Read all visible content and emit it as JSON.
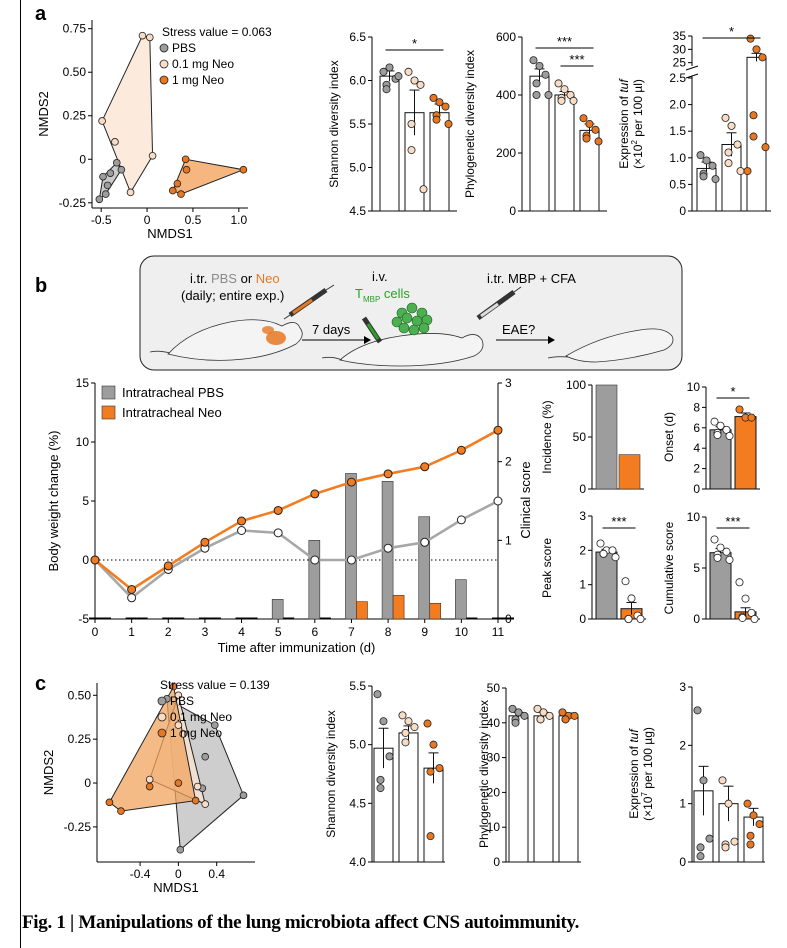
{
  "panel_labels": [
    "a",
    "b",
    "c"
  ],
  "caption": "Fig. 1 | Manipulations of the lung microbiota affect CNS autoimmunity.",
  "colors": {
    "pbs": "#9d9d9d",
    "neo_low": "#f9dcc4",
    "neo_high": "#e87722",
    "neo_bar": "#f47c20",
    "hull_pbs": "#bdbdbd",
    "hull_low": "#fbe6d3",
    "hull_high": "#f2a45f"
  },
  "schematic": {
    "step1_prefix": "i.tr.",
    "step1_pbs": "PBS",
    "step1_or": "or",
    "step1_neo": "Neo",
    "step1_line2": "(daily; entire exp.)",
    "arrow1": "7 days",
    "step2_line1": "i.v.",
    "step2_cells_T": "T",
    "step2_cells_sub": "MBP",
    "step2_cells_rest": "cells",
    "step3": "i.tr. MBP + CFA",
    "arrow3": "EAE?"
  },
  "chart_data": [
    {
      "id": "a_nmds",
      "type": "scatter",
      "title": "Stress value = 0.063",
      "xlabel": "NMDS1",
      "ylabel": "NMDS2",
      "xlim": [
        -0.6,
        1.1
      ],
      "ylim": [
        -0.28,
        0.8
      ],
      "xticks": [
        "-0.5",
        "0",
        "0.5",
        "1.0"
      ],
      "xtick_values": [
        -0.5,
        0,
        0.5,
        1.0
      ],
      "yticks": [
        "-0.25",
        "0",
        "0.25",
        "0.50",
        "0.75"
      ],
      "ytick_values": [
        -0.25,
        0,
        0.25,
        0.5,
        0.75
      ],
      "legend": [
        "PBS",
        "0.1 mg Neo",
        "1 mg Neo"
      ],
      "series": [
        {
          "name": "PBS",
          "color": "pbs",
          "points": [
            [
              -0.52,
              -0.23
            ],
            [
              -0.48,
              -0.1
            ],
            [
              -0.45,
              -0.2
            ],
            [
              -0.4,
              -0.08
            ],
            [
              -0.33,
              -0.02
            ],
            [
              -0.28,
              -0.06
            ],
            [
              -0.43,
              -0.15
            ]
          ]
        },
        {
          "name": "0.1 mg Neo",
          "color": "neo_low",
          "points": [
            [
              -0.49,
              0.22
            ],
            [
              -0.05,
              0.71
            ],
            [
              0.03,
              0.7
            ],
            [
              0.06,
              0.02
            ],
            [
              -0.18,
              -0.19
            ],
            [
              -0.35,
              0.1
            ]
          ]
        },
        {
          "name": "1 mg Neo",
          "color": "neo_high",
          "points": [
            [
              0.28,
              -0.18
            ],
            [
              0.33,
              -0.14
            ],
            [
              0.43,
              -0.06
            ],
            [
              0.42,
              0.0
            ],
            [
              1.05,
              -0.06
            ],
            [
              0.37,
              -0.2
            ]
          ]
        }
      ]
    },
    {
      "id": "a_shannon",
      "type": "bar",
      "ylabel": "Shannon diversity index",
      "ylim": [
        4.5,
        6.5
      ],
      "yticks": [
        "4.5",
        "5.0",
        "5.5",
        "6.0",
        "6.5"
      ],
      "ytick_values": [
        4.5,
        5.0,
        5.5,
        6.0,
        6.5
      ],
      "categories": [
        "PBS",
        "0.1 mg Neo",
        "1 mg Neo"
      ],
      "values": [
        6.05,
        5.63,
        5.63
      ],
      "errors": [
        0.06,
        0.26,
        0.1
      ],
      "points": [
        [
          6.1,
          6.15,
          6.02,
          5.95,
          5.9,
          6.05
        ],
        [
          6.1,
          6.0,
          5.95,
          5.5,
          5.2,
          4.75
        ],
        [
          5.8,
          5.75,
          5.7,
          5.6,
          5.55,
          5.5
        ]
      ],
      "significance": [
        {
          "from": 0,
          "to": 2,
          "label": "*"
        }
      ]
    },
    {
      "id": "a_pd",
      "type": "bar",
      "ylabel": "Phylogenetic diversity index",
      "ylim": [
        0,
        600
      ],
      "yticks": [
        "0",
        "200",
        "400",
        "600"
      ],
      "ytick_values": [
        0,
        200,
        400,
        600
      ],
      "categories": [
        "PBS",
        "0.1 mg Neo",
        "1 mg Neo"
      ],
      "values": [
        465,
        400,
        278
      ],
      "errors": [
        25,
        12,
        22
      ],
      "points": [
        [
          520,
          500,
          470,
          440,
          400,
          400
        ],
        [
          440,
          420,
          400,
          390,
          380,
          380
        ],
        [
          320,
          300,
          280,
          260,
          250,
          240
        ]
      ],
      "significance": [
        {
          "from": 0,
          "to": 2,
          "label": "***"
        },
        {
          "from": 1,
          "to": 2,
          "label": "***"
        }
      ]
    },
    {
      "id": "a_tuf",
      "type": "bar",
      "ylabel": "Expression of tuf (×10² per 100 µl)",
      "ylabel_parts": [
        "Expression of ",
        "tuf",
        "(×10",
        "2",
        " per 100 µl)"
      ],
      "lower_ylim": [
        0,
        2.5
      ],
      "upper_ylim": [
        20,
        35
      ],
      "yticks": [
        "0",
        "0.5",
        "1.0",
        "1.5",
        "2.0",
        "2.5",
        "25",
        "30",
        "35"
      ],
      "categories": [
        "PBS",
        "0.1 mg Neo",
        "1 mg Neo"
      ],
      "values": [
        0.8,
        1.25,
        27.0
      ],
      "errors": [
        0.12,
        0.22,
        1.5
      ],
      "points": [
        [
          1.05,
          0.95,
          0.85,
          0.7,
          0.65,
          0.6
        ],
        [
          1.75,
          1.6,
          1.25,
          1.1,
          0.9,
          0.75
        ],
        [
          34,
          30,
          27,
          1.8,
          1.4,
          1.2,
          0.75
        ]
      ],
      "significance": [
        {
          "from": 0,
          "to": 2,
          "label": "*"
        }
      ]
    },
    {
      "id": "b_main",
      "type": "bar+line",
      "xlabel": "Time after immunization (d)",
      "ylabel": "Body weight change (%)",
      "ylabel2": "Clinical score",
      "ylim": [
        -5,
        15
      ],
      "ylim2": [
        0,
        3
      ],
      "yticks": [
        "-5",
        "0",
        "5",
        "10",
        "15"
      ],
      "ytick_values": [
        -5,
        0,
        5,
        10,
        15
      ],
      "yticks2": [
        "0",
        "1",
        "2",
        "3"
      ],
      "ytick2_values": [
        0,
        1,
        2,
        3
      ],
      "x": [
        0,
        1,
        2,
        3,
        4,
        5,
        6,
        7,
        8,
        9,
        10,
        11
      ],
      "legend": [
        "Intratracheal PBS",
        "Intratracheal Neo"
      ],
      "series": [
        {
          "name": "Intratracheal PBS",
          "kind": "bar",
          "color": "pbs",
          "values": [
            0,
            0,
            0,
            0,
            0,
            0.25,
            1.0,
            1.85,
            1.75,
            1.3,
            0.5,
            0
          ]
        },
        {
          "name": "Intratracheal Neo",
          "kind": "bar",
          "color": "neo_bar",
          "values": [
            0,
            0,
            0,
            0,
            0,
            0,
            0,
            0.22,
            0.3,
            0.2,
            0,
            0
          ]
        },
        {
          "name": "Intratracheal PBS",
          "kind": "line",
          "color": "pbs",
          "values": [
            0,
            -3.2,
            -0.8,
            1.0,
            2.5,
            2.3,
            0,
            0,
            1.0,
            1.5,
            3.4,
            5.0
          ]
        },
        {
          "name": "Intratracheal Neo",
          "kind": "line",
          "color": "neo_bar",
          "values": [
            0,
            -2.5,
            -0.5,
            1.5,
            3.3,
            4.2,
            5.6,
            6.6,
            7.3,
            7.9,
            9.3,
            11.0
          ]
        }
      ]
    },
    {
      "id": "b_incidence",
      "type": "bar",
      "ylabel": "Incidence (%)",
      "ylim": [
        0,
        100
      ],
      "yticks": [
        "0",
        "50",
        "100"
      ],
      "ytick_values": [
        0,
        50,
        100
      ],
      "categories": [
        "PBS",
        "Neo"
      ],
      "values": [
        100,
        33
      ]
    },
    {
      "id": "b_onset",
      "type": "bar",
      "ylabel": "Onset (d)",
      "ylim": [
        0,
        10
      ],
      "yticks": [
        "0",
        "2",
        "4",
        "6",
        "8",
        "10"
      ],
      "ytick_values": [
        0,
        2,
        4,
        6,
        8,
        10
      ],
      "categories": [
        "PBS",
        "Neo"
      ],
      "values": [
        5.8,
        7.1
      ],
      "errors": [
        0.3,
        0.35
      ],
      "points": [
        [
          6.6,
          6.2,
          5.8,
          5.5,
          5.3,
          5.2
        ],
        [
          7.8,
          7.0,
          7.0
        ]
      ],
      "significance": [
        {
          "from": 0,
          "to": 1,
          "label": "*"
        }
      ]
    },
    {
      "id": "b_peak",
      "type": "bar",
      "ylabel": "Peak score",
      "ylim": [
        0,
        3
      ],
      "yticks": [
        "0",
        "1",
        "2",
        "3"
      ],
      "ytick_values": [
        0,
        1,
        2,
        3
      ],
      "categories": [
        "PBS",
        "Neo"
      ],
      "values": [
        1.95,
        0.3
      ],
      "errors": [
        0.08,
        0.18
      ],
      "points": [
        [
          2.2,
          2.0,
          2.0,
          1.9,
          1.9,
          1.8
        ],
        [
          1.1,
          0.6,
          0.1,
          0.0,
          0.0,
          0.0
        ]
      ],
      "significance": [
        {
          "from": 0,
          "to": 1,
          "label": "***"
        }
      ]
    },
    {
      "id": "b_cumulative",
      "type": "bar",
      "ylabel": "Cumulative score",
      "ylim": [
        0,
        10
      ],
      "yticks": [
        "0",
        "5",
        "10"
      ],
      "ytick_values": [
        0,
        5,
        10
      ],
      "categories": [
        "PBS",
        "Neo"
      ],
      "values": [
        6.5,
        0.7
      ],
      "errors": [
        0.4,
        0.4
      ],
      "points": [
        [
          7.8,
          7.0,
          6.6,
          6.3,
          6.0,
          5.8
        ],
        [
          3.6,
          2.0,
          0.6,
          0.2,
          0.1,
          0.0
        ]
      ],
      "significance": [
        {
          "from": 0,
          "to": 1,
          "label": "***"
        }
      ]
    },
    {
      "id": "c_nmds",
      "type": "scatter",
      "title": "Stress value = 0.139",
      "xlabel": "NMDS1",
      "ylabel": "NMDS2",
      "xlim": [
        -0.85,
        0.8
      ],
      "ylim": [
        -0.45,
        0.57
      ],
      "xticks": [
        "-0.4",
        "0",
        "0.4"
      ],
      "xtick_values": [
        -0.4,
        0,
        0.4
      ],
      "yticks": [
        "-0.25",
        "0",
        "0.25",
        "0.50"
      ],
      "ytick_values": [
        -0.25,
        0,
        0.25,
        0.5
      ],
      "legend": [
        "PBS",
        "0.1 mg Neo",
        "1 mg Neo"
      ],
      "series": [
        {
          "name": "PBS",
          "color": "pbs",
          "points": [
            [
              -0.12,
              0.48
            ],
            [
              0.38,
              0.33
            ],
            [
              0.68,
              -0.07
            ],
            [
              0.02,
              -0.38
            ],
            [
              0.25,
              -0.03
            ],
            [
              0.28,
              0.15
            ]
          ]
        },
        {
          "name": "0.1 mg Neo",
          "color": "neo_low",
          "points": [
            [
              0.0,
              0.5
            ],
            [
              0.28,
              -0.12
            ],
            [
              0.2,
              -0.02
            ],
            [
              0.0,
              0.33
            ],
            [
              -0.3,
              0.02
            ],
            [
              0.05,
              0.28
            ]
          ]
        },
        {
          "name": "1 mg Neo",
          "color": "neo_high",
          "points": [
            [
              -0.05,
              0.55
            ],
            [
              -0.3,
              -0.02
            ],
            [
              -0.72,
              -0.11
            ],
            [
              0.18,
              -0.1
            ],
            [
              0.0,
              0.0
            ],
            [
              -0.6,
              -0.16
            ]
          ]
        }
      ]
    },
    {
      "id": "c_shannon",
      "type": "bar",
      "ylabel": "Shannon diversity index",
      "ylim": [
        4.0,
        5.5
      ],
      "yticks": [
        "4.0",
        "4.5",
        "5.0",
        "5.5"
      ],
      "ytick_values": [
        4.0,
        4.5,
        5.0,
        5.5
      ],
      "categories": [
        "PBS",
        "0.1 mg Neo",
        "1 mg Neo"
      ],
      "values": [
        4.97,
        5.1,
        4.8
      ],
      "errors": [
        0.17,
        0.06,
        0.13
      ],
      "points": [
        [
          5.43,
          5.2,
          4.9,
          4.7,
          4.63
        ],
        [
          5.25,
          5.2,
          5.15,
          5.1,
          5.02
        ],
        [
          5.18,
          5.0,
          4.8,
          4.77,
          4.22
        ]
      ]
    },
    {
      "id": "c_pd",
      "type": "bar",
      "ylabel": "Phylogenetic diversity index",
      "ylim": [
        0,
        50
      ],
      "yticks": [
        "0",
        "10",
        "20",
        "30",
        "40",
        "50"
      ],
      "ytick_values": [
        0,
        10,
        20,
        30,
        40,
        50
      ],
      "categories": [
        "PBS",
        "0.1 mg Neo",
        "1 mg Neo"
      ],
      "values": [
        42,
        42,
        42
      ],
      "errors": [
        1.0,
        1.0,
        0.8
      ],
      "points": [
        [
          44,
          43,
          42,
          41,
          40
        ],
        [
          44,
          43,
          42,
          41,
          41
        ],
        [
          43,
          42,
          42,
          41,
          41
        ]
      ]
    },
    {
      "id": "c_tuf",
      "type": "bar",
      "ylabel": "Expression of tuf (×10⁷ per 100 µg)",
      "ylabel_parts": [
        "Expression of ",
        "tuf",
        "(×10",
        "7",
        " per 100 µg)"
      ],
      "ylim": [
        0,
        3
      ],
      "yticks": [
        "0",
        "1",
        "2",
        "3"
      ],
      "ytick_values": [
        0,
        1,
        2,
        3
      ],
      "categories": [
        "PBS",
        "0.1 mg Neo",
        "1 mg Neo"
      ],
      "values": [
        1.22,
        1.0,
        0.77
      ],
      "errors": [
        0.42,
        0.3,
        0.15
      ],
      "points": [
        [
          2.6,
          1.4,
          0.4,
          0.25,
          0.1
        ],
        [
          1.4,
          1.0,
          0.35,
          0.3,
          0.25
        ],
        [
          1.0,
          0.8,
          0.65,
          0.45,
          0.3
        ]
      ]
    }
  ]
}
